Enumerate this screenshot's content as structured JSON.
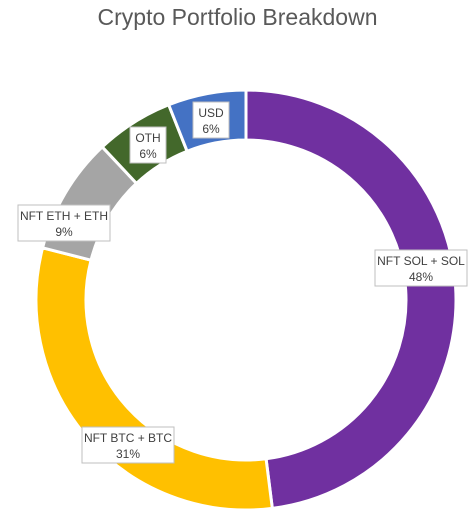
{
  "chart_data": {
    "type": "pie",
    "variant": "doughnut",
    "title": "Crypto Portfolio Breakdown",
    "categories": [
      "NFT SOL + SOL",
      "NFT BTC + BTC",
      "NFT ETH + ETH",
      "OTH",
      "USD"
    ],
    "values": [
      48,
      31,
      9,
      6,
      6
    ],
    "value_labels": [
      "48%",
      "31%",
      "9%",
      "6%",
      "6%"
    ],
    "colors": [
      "#7030A0",
      "#FFC000",
      "#A5A5A5",
      "#43682B",
      "#4472C4"
    ],
    "legend": "none"
  }
}
